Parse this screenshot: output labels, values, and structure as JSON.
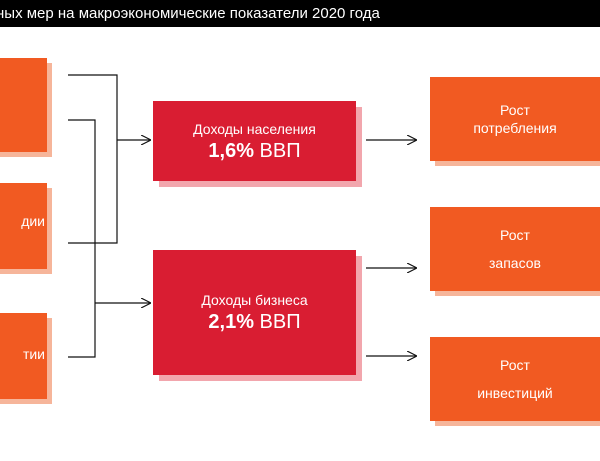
{
  "title": "ных мер на макроэкономические показатели 2020 года",
  "left_boxes": [
    {
      "label": ""
    },
    {
      "label": "дии"
    },
    {
      "label": "тии"
    }
  ],
  "center_boxes": [
    {
      "label": "Доходы населения",
      "value": "1,6%",
      "unit": "ВВП"
    },
    {
      "label": "Доходы бизнеса",
      "value": "2,1%",
      "unit": "ВВП"
    }
  ],
  "right_boxes": [
    {
      "line1": "Рост",
      "line2": "потребления"
    },
    {
      "line1": "Рост",
      "line2": "запасов"
    },
    {
      "line1": "Рост",
      "line2": "инвестиций"
    }
  ],
  "colors": {
    "orange": "#f15a22",
    "red": "#d91d32",
    "title_bg": "#000000"
  }
}
